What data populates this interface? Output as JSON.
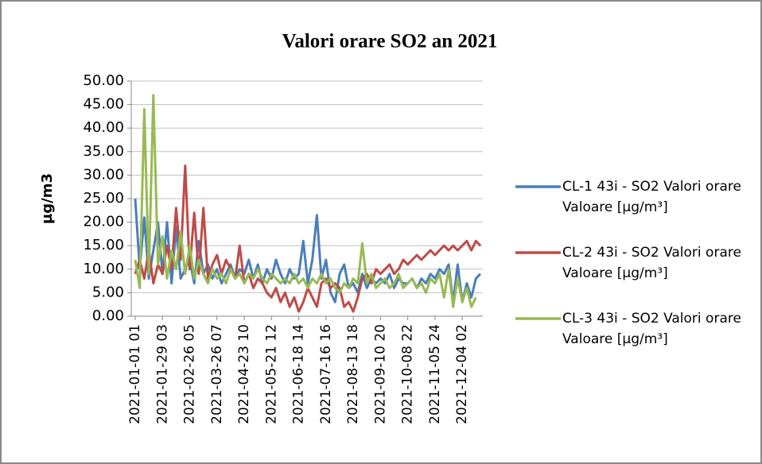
{
  "chart_data": {
    "type": "line",
    "title": "Valori orare SO2 an 2021",
    "y_label": "µg/m3",
    "categories": [
      "2021-01-01 01",
      null,
      null,
      null,
      null,
      null,
      "2021-01-29 03",
      null,
      null,
      null,
      null,
      null,
      "2021-02-26 05",
      null,
      null,
      null,
      null,
      null,
      "2021-03-26 07",
      null,
      null,
      null,
      null,
      null,
      "2021-04-23 10",
      null,
      null,
      null,
      null,
      null,
      "2021-05-21 12",
      null,
      null,
      null,
      null,
      null,
      "2021-06-18 14",
      null,
      null,
      null,
      null,
      null,
      "2021-07-16 16",
      null,
      null,
      null,
      null,
      null,
      "2021-08-13 18",
      null,
      null,
      null,
      null,
      null,
      "2021-09-10 20",
      null,
      null,
      null,
      null,
      null,
      "2021-10-08 22",
      null,
      null,
      null,
      null,
      null,
      "2021-11-05 24",
      null,
      null,
      null,
      null,
      null,
      "2021-12-04 02",
      null,
      null,
      null,
      null
    ],
    "series": [
      {
        "name": "CL-1 43i - SO2 Valori orare Valoare [µg/m³]",
        "color": "#4a7ebb",
        "values": [
          25,
          10,
          21,
          8,
          14,
          20,
          9,
          20,
          7,
          19,
          8,
          10,
          12,
          7,
          16,
          9,
          11,
          8,
          10,
          7,
          9,
          11,
          8,
          10,
          9,
          12,
          8,
          11,
          7,
          10,
          8,
          12,
          9,
          7,
          10,
          8,
          9,
          16,
          7,
          12,
          21.5,
          8,
          12,
          5,
          3,
          9,
          11,
          6,
          7,
          5,
          9,
          6,
          8,
          7,
          8,
          7,
          9,
          6,
          8,
          7,
          7,
          8,
          6,
          8,
          7,
          9,
          8,
          10,
          9,
          11,
          3,
          11,
          3,
          7,
          4,
          8,
          9
        ]
      },
      {
        "name": "CL-2 43i - SO2 Valori orare Valoare [µg/m³]",
        "color": "#be4b48",
        "values": [
          9,
          12,
          8,
          14,
          7,
          11,
          9,
          15,
          10,
          23,
          12,
          32,
          10,
          22,
          9,
          23,
          8,
          11,
          13,
          9,
          12,
          10,
          8,
          15,
          7,
          9,
          6,
          8,
          7,
          5,
          4,
          6,
          3,
          5,
          2,
          4,
          1,
          3,
          6,
          4,
          2,
          7,
          8,
          6,
          7,
          6,
          2,
          3,
          1,
          4,
          8,
          9,
          7,
          10,
          9,
          10,
          11,
          9,
          10,
          12,
          11,
          12,
          13,
          12,
          13,
          14,
          13,
          14,
          15,
          14,
          15,
          14,
          15,
          16,
          14,
          16,
          15
        ]
      },
      {
        "name": "CL-3 43i - SO2 Valori orare Valoare [µg/m³]",
        "color": "#98b954",
        "values": [
          12,
          6,
          44,
          9,
          47,
          11,
          17,
          8,
          14,
          10,
          18,
          9,
          15,
          8,
          12,
          9,
          7,
          10,
          8,
          9,
          7,
          10,
          8,
          9,
          7,
          9,
          8,
          10,
          8,
          7,
          9,
          8,
          7,
          8,
          7,
          9,
          7,
          8,
          6,
          8,
          7,
          9,
          7,
          8,
          6,
          5,
          7,
          6,
          8,
          7,
          15.5,
          7,
          9,
          6,
          7,
          8,
          6,
          7,
          9,
          6,
          7,
          8,
          6,
          7,
          5,
          8,
          7,
          9,
          4,
          10,
          2,
          8,
          3,
          6,
          2,
          4,
          null
        ]
      }
    ],
    "ylim": [
      0,
      50
    ],
    "yticks": [
      {
        "value": 0,
        "label": "0.00"
      },
      {
        "value": 5,
        "label": "5.00"
      },
      {
        "value": 10,
        "label": "10.00"
      },
      {
        "value": 15,
        "label": "15.00"
      },
      {
        "value": 20,
        "label": "20.00"
      },
      {
        "value": 25,
        "label": "25.00"
      },
      {
        "value": 30,
        "label": "30.00"
      },
      {
        "value": 35,
        "label": "35.00"
      },
      {
        "value": 40,
        "label": "40.00"
      },
      {
        "value": 45,
        "label": "45.00"
      },
      {
        "value": 50,
        "label": "50.00"
      }
    ],
    "grid": true,
    "legend": "right"
  }
}
